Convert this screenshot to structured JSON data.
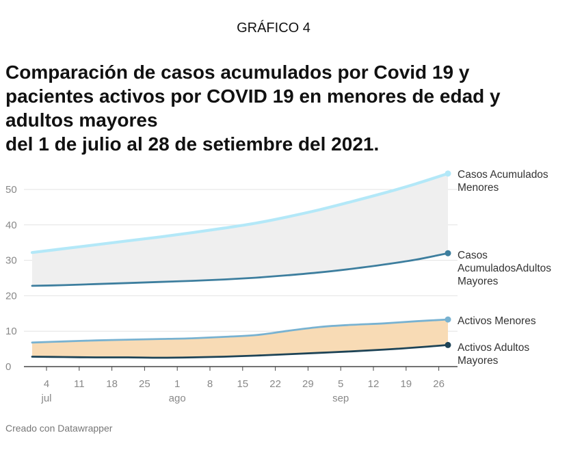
{
  "header_label": "GRÁFICO 4",
  "title_lines": [
    "Comparación de casos acumulados por Covid 19 y",
    "pacientes activos por COVID 19 en  menores de edad y",
    "adultos mayores",
    "del 1 de julio al 28 de setiembre del 2021."
  ],
  "footer": "Creado con Datawrapper",
  "colors": {
    "casos_menores": "#b3e8f8",
    "casos_adultos": "#3d7e9e",
    "activos_menores": "#78b2d1",
    "activos_adultos": "#1d4356",
    "area_upper": "#efefef",
    "area_lower": "#f8dbb5",
    "grid": "#e3e3e3",
    "ticks": "#888888"
  },
  "chart_data": {
    "type": "area",
    "ylim": [
      0,
      55
    ],
    "y_ticks": [
      0,
      10,
      20,
      30,
      40,
      50
    ],
    "x_ticks": [
      "4",
      "11",
      "18",
      "25",
      "1",
      "8",
      "15",
      "22",
      "29",
      "5",
      "12",
      "19",
      "26"
    ],
    "x_month_labels": [
      {
        "label": "jul",
        "at_tick": 0
      },
      {
        "label": "ago",
        "at_tick": 4
      },
      {
        "label": "sep",
        "at_tick": 9
      }
    ],
    "x_range_dates": [
      "2021-07-01",
      "2021-09-27"
    ],
    "grid": true,
    "series": [
      {
        "key": "casos_menores",
        "name": "Casos Acumulados Menores",
        "label_lines": [
          "Casos Acumulados",
          "Menores"
        ],
        "values": [
          32.2,
          33.3,
          34.4,
          35.5,
          36.6,
          37.8,
          39.1,
          40.5,
          42.3,
          44.3,
          46.6,
          49.0,
          51.6,
          54.5
        ]
      },
      {
        "key": "casos_adultos",
        "name": "Casos AcumuladosAdultos Mayores",
        "label_lines": [
          "Casos",
          "AcumuladosAdultos",
          "Mayores"
        ],
        "values": [
          22.8,
          23.0,
          23.3,
          23.6,
          23.9,
          24.2,
          24.6,
          25.1,
          25.8,
          26.6,
          27.6,
          28.8,
          30.2,
          32.0
        ]
      },
      {
        "key": "activos_menores",
        "name": "Activos Menores",
        "label_lines": [
          "Activos Menores"
        ],
        "values": [
          6.8,
          7.1,
          7.4,
          7.6,
          7.8,
          8.0,
          8.4,
          8.9,
          10.1,
          11.2,
          11.8,
          12.2,
          12.8,
          13.3
        ]
      },
      {
        "key": "activos_adultos",
        "name": "Activos Adultos Mayores",
        "label_lines": [
          "Activos Adultos",
          "Mayores"
        ],
        "values": [
          2.8,
          2.7,
          2.6,
          2.6,
          2.5,
          2.6,
          2.8,
          3.1,
          3.5,
          3.9,
          4.3,
          4.8,
          5.4,
          6.1
        ]
      }
    ]
  }
}
